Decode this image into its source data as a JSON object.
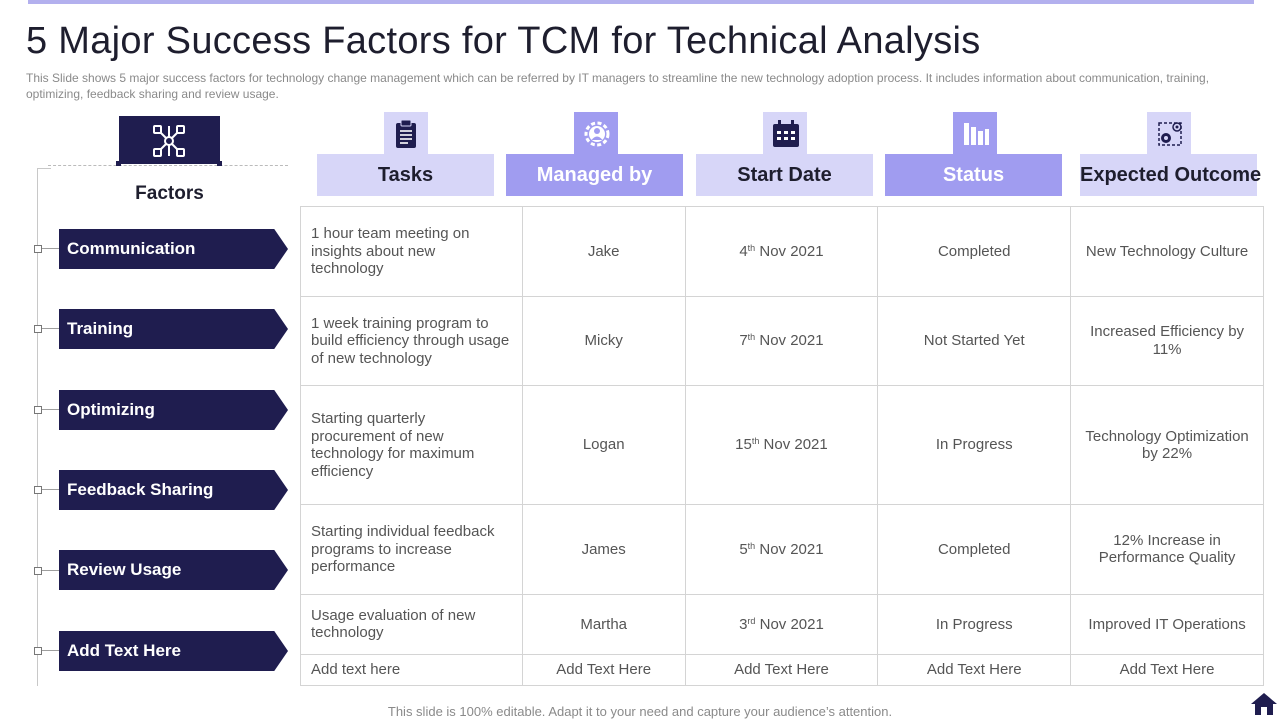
{
  "title": "5 Major Success Factors for TCM for Technical Analysis",
  "subtitle": "This Slide shows 5 major success factors for technology change management which can be referred  by IT managers to streamline the new technology adoption process. It includes information  about communication, training, optimizing, feedback sharing and review  usage.",
  "factors_header": "Factors",
  "factors": [
    {
      "label": "Communication"
    },
    {
      "label": "Training"
    },
    {
      "label": "Optimizing"
    },
    {
      "label": "Feedback Sharing"
    },
    {
      "label": "Review Usage"
    },
    {
      "label": "Add  Text Here"
    }
  ],
  "columns": [
    {
      "label": "Tasks",
      "icon": "clipboard-icon"
    },
    {
      "label": "Managed by",
      "icon": "gear-person-icon"
    },
    {
      "label": "Start Date",
      "icon": "calendar-icon"
    },
    {
      "label": "Status",
      "icon": "bar-chart-icon"
    },
    {
      "label": "Expected Outcome",
      "icon": "settings-target-icon"
    }
  ],
  "rows": [
    {
      "task": "1 hour team meeting on insights about new technology",
      "managed_by": "Jake",
      "date_day": "4",
      "date_suffix": "th",
      "date_rest": " Nov 2021",
      "status": "Completed",
      "outcome": "New Technology Culture"
    },
    {
      "task": "1 week training program to build efficiency through usage of new technology",
      "managed_by": "Micky",
      "date_day": "7",
      "date_suffix": "th",
      "date_rest": " Nov 2021",
      "status": "Not Started Yet",
      "outcome": "Increased Efficiency by 11%"
    },
    {
      "task": "Starting quarterly procurement of new technology for maximum efficiency",
      "managed_by": "Logan",
      "date_day": "15",
      "date_suffix": "th",
      "date_rest": " Nov 2021",
      "status": "In Progress",
      "outcome": "Technology Optimization by 22%"
    },
    {
      "task": "Starting individual  feedback programs to increase performance",
      "managed_by": "James",
      "date_day": "5",
      "date_suffix": "th",
      "date_rest": " Nov 2021",
      "status": "Completed",
      "outcome": "12% Increase in Performance Quality"
    },
    {
      "task": "Usage evaluation  of new technology",
      "managed_by": "Martha",
      "date_day": "3",
      "date_suffix": "rd",
      "date_rest": " Nov 2021",
      "status": "In Progress",
      "outcome": "Improved IT Operations"
    },
    {
      "task": "Add text here",
      "managed_by": "Add Text Here",
      "date_full": "Add Text Here",
      "status": "Add Text Here",
      "outcome": "Add Text Here"
    }
  ],
  "footer": "This slide is 100% editable. Adapt it to your need and capture your audience’s attention.",
  "colors": {
    "navy": "#1f1d4f",
    "lavender_light": "#d7d6f8",
    "lavender_dark": "#a09cf0",
    "accent_bar": "#b3b0ee"
  },
  "home_icon": "home-icon"
}
